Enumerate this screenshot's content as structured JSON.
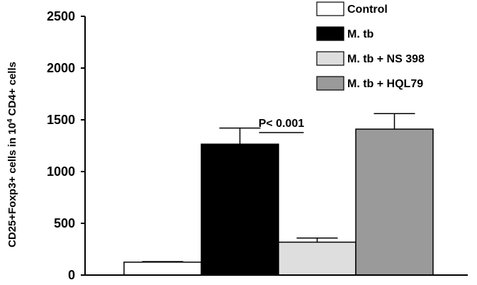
{
  "chart_data": {
    "type": "bar",
    "categories": [
      "Control",
      "M. tb",
      "M. tb + NS 398",
      "M. tb + HQL79"
    ],
    "values": [
      125,
      1265,
      318,
      1410
    ],
    "errors": [
      5,
      155,
      40,
      150
    ],
    "colors": [
      "#ffffff",
      "#000000",
      "#dedede",
      "#9a9a9a"
    ],
    "ylabel_prefix": "CD25+Foxp3+ cells in 10",
    "ylabel_sup": "4",
    "ylabel_suffix": " CD4+ cells",
    "ylim": [
      0,
      2500
    ],
    "yticks": [
      "0",
      "500",
      "1000",
      "1500",
      "2000",
      "2500"
    ],
    "grid": false,
    "legend_position": "top-right",
    "legend": [
      "Control",
      "M. tb",
      "M. tb + NS 398",
      "M. tb + HQL79"
    ],
    "annotation": {
      "text": "P< 0.001",
      "between": [
        "M. tb",
        "M. tb + NS 398"
      ]
    }
  }
}
